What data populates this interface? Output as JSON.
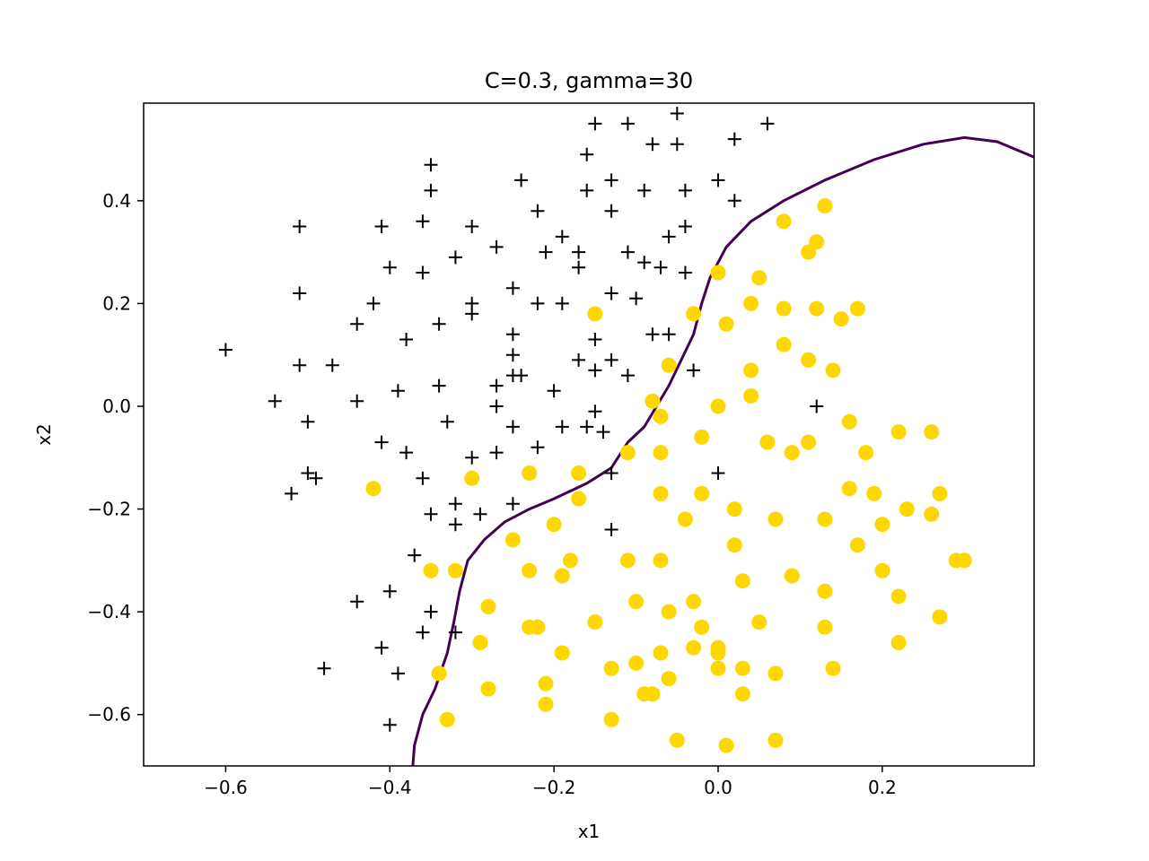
{
  "chart_data": {
    "type": "scatter",
    "title": "C=0.3, gamma=30",
    "xlabel": "x1",
    "ylabel": "x2",
    "xlim": [
      -0.7,
      0.385
    ],
    "ylim": [
      -0.7,
      0.59
    ],
    "x_ticks": [
      -0.6,
      -0.4,
      -0.2,
      0.0,
      0.2
    ],
    "x_tick_labels": [
      "−0.6",
      "−0.4",
      "−0.2",
      "0.0",
      "0.2"
    ],
    "y_ticks": [
      -0.6,
      -0.4,
      -0.2,
      0.0,
      0.2,
      0.4
    ],
    "y_tick_labels": [
      "−0.6",
      "−0.4",
      "−0.2",
      "0.0",
      "0.2",
      "0.4"
    ],
    "grid": false,
    "colors": {
      "positive": "#000000",
      "negative": "#FFD700",
      "boundary": "#440154"
    },
    "series": [
      {
        "marker": "plus",
        "color": "#000000",
        "points": [
          [
            -0.15,
            0.55
          ],
          [
            -0.11,
            0.55
          ],
          [
            -0.05,
            0.57
          ],
          [
            0.06,
            0.55
          ],
          [
            -0.08,
            0.51
          ],
          [
            -0.05,
            0.51
          ],
          [
            0.02,
            0.52
          ],
          [
            -0.35,
            0.47
          ],
          [
            -0.16,
            0.49
          ],
          [
            -0.35,
            0.42
          ],
          [
            -0.24,
            0.44
          ],
          [
            -0.16,
            0.42
          ],
          [
            -0.13,
            0.44
          ],
          [
            -0.09,
            0.42
          ],
          [
            -0.04,
            0.42
          ],
          [
            0.0,
            0.44
          ],
          [
            0.02,
            0.4
          ],
          [
            -0.51,
            0.35
          ],
          [
            -0.41,
            0.35
          ],
          [
            -0.36,
            0.36
          ],
          [
            -0.3,
            0.35
          ],
          [
            -0.22,
            0.38
          ],
          [
            -0.13,
            0.38
          ],
          [
            -0.04,
            0.35
          ],
          [
            -0.27,
            0.31
          ],
          [
            -0.19,
            0.33
          ],
          [
            -0.06,
            0.33
          ],
          [
            -0.4,
            0.27
          ],
          [
            -0.36,
            0.26
          ],
          [
            -0.32,
            0.29
          ],
          [
            -0.21,
            0.3
          ],
          [
            -0.17,
            0.3
          ],
          [
            -0.11,
            0.3
          ],
          [
            -0.17,
            0.27
          ],
          [
            -0.09,
            0.28
          ],
          [
            -0.07,
            0.27
          ],
          [
            -0.04,
            0.26
          ],
          [
            -0.51,
            0.22
          ],
          [
            -0.42,
            0.2
          ],
          [
            -0.3,
            0.2
          ],
          [
            -0.3,
            0.18
          ],
          [
            -0.25,
            0.23
          ],
          [
            -0.22,
            0.2
          ],
          [
            -0.19,
            0.2
          ],
          [
            -0.13,
            0.22
          ],
          [
            -0.1,
            0.21
          ],
          [
            -0.44,
            0.16
          ],
          [
            -0.34,
            0.16
          ],
          [
            -0.38,
            0.13
          ],
          [
            -0.25,
            0.14
          ],
          [
            -0.15,
            0.13
          ],
          [
            -0.08,
            0.14
          ],
          [
            -0.06,
            0.14
          ],
          [
            -0.6,
            0.11
          ],
          [
            -0.51,
            0.08
          ],
          [
            -0.47,
            0.08
          ],
          [
            -0.25,
            0.1
          ],
          [
            -0.17,
            0.09
          ],
          [
            -0.15,
            0.07
          ],
          [
            -0.13,
            0.09
          ],
          [
            -0.11,
            0.06
          ],
          [
            -0.27,
            0.04
          ],
          [
            -0.25,
            0.06
          ],
          [
            -0.24,
            0.06
          ],
          [
            -0.03,
            0.07
          ],
          [
            -0.54,
            0.01
          ],
          [
            -0.44,
            0.01
          ],
          [
            -0.39,
            0.03
          ],
          [
            -0.34,
            0.04
          ],
          [
            -0.27,
            0.0
          ],
          [
            -0.2,
            0.03
          ],
          [
            -0.5,
            -0.03
          ],
          [
            -0.33,
            -0.03
          ],
          [
            -0.25,
            -0.04
          ],
          [
            -0.19,
            -0.04
          ],
          [
            -0.16,
            -0.04
          ],
          [
            -0.15,
            -0.01
          ],
          [
            -0.14,
            -0.05
          ],
          [
            0.12,
            0.0
          ],
          [
            -0.41,
            -0.07
          ],
          [
            -0.38,
            -0.09
          ],
          [
            -0.3,
            -0.1
          ],
          [
            -0.27,
            -0.09
          ],
          [
            -0.22,
            -0.08
          ],
          [
            -0.5,
            -0.13
          ],
          [
            -0.49,
            -0.14
          ],
          [
            -0.52,
            -0.17
          ],
          [
            -0.36,
            -0.14
          ],
          [
            -0.32,
            -0.19
          ],
          [
            -0.25,
            -0.19
          ],
          [
            -0.13,
            -0.13
          ],
          [
            0.0,
            -0.13
          ],
          [
            -0.35,
            -0.21
          ],
          [
            -0.32,
            -0.23
          ],
          [
            -0.29,
            -0.21
          ],
          [
            -0.13,
            -0.24
          ],
          [
            -0.37,
            -0.29
          ],
          [
            -0.44,
            -0.38
          ],
          [
            -0.4,
            -0.36
          ],
          [
            -0.35,
            -0.4
          ],
          [
            -0.32,
            -0.44
          ],
          [
            -0.36,
            -0.44
          ],
          [
            -0.48,
            -0.51
          ],
          [
            -0.41,
            -0.47
          ],
          [
            -0.39,
            -0.52
          ],
          [
            -0.4,
            -0.62
          ]
        ]
      },
      {
        "marker": "circle",
        "color": "#FFD700",
        "points": [
          [
            0.08,
            0.36
          ],
          [
            0.13,
            0.39
          ],
          [
            0.12,
            0.32
          ],
          [
            0.11,
            0.3
          ],
          [
            0.0,
            0.26
          ],
          [
            0.05,
            0.25
          ],
          [
            -0.15,
            0.18
          ],
          [
            -0.03,
            0.18
          ],
          [
            0.01,
            0.16
          ],
          [
            0.04,
            0.2
          ],
          [
            0.08,
            0.19
          ],
          [
            0.12,
            0.19
          ],
          [
            0.15,
            0.17
          ],
          [
            0.17,
            0.19
          ],
          [
            0.08,
            0.12
          ],
          [
            -0.06,
            0.08
          ],
          [
            0.04,
            0.07
          ],
          [
            0.11,
            0.09
          ],
          [
            0.14,
            0.07
          ],
          [
            -0.08,
            0.01
          ],
          [
            0.0,
            0.0
          ],
          [
            0.04,
            0.02
          ],
          [
            -0.07,
            -0.02
          ],
          [
            0.16,
            -0.03
          ],
          [
            -0.02,
            -0.06
          ],
          [
            -0.11,
            -0.09
          ],
          [
            -0.07,
            -0.09
          ],
          [
            0.06,
            -0.07
          ],
          [
            0.09,
            -0.09
          ],
          [
            0.11,
            -0.07
          ],
          [
            0.18,
            -0.09
          ],
          [
            0.22,
            -0.05
          ],
          [
            0.26,
            -0.05
          ],
          [
            -0.3,
            -0.14
          ],
          [
            -0.23,
            -0.13
          ],
          [
            -0.17,
            -0.13
          ],
          [
            -0.42,
            -0.16
          ],
          [
            -0.17,
            -0.18
          ],
          [
            -0.07,
            -0.17
          ],
          [
            -0.02,
            -0.17
          ],
          [
            0.02,
            -0.2
          ],
          [
            0.16,
            -0.16
          ],
          [
            0.19,
            -0.17
          ],
          [
            0.27,
            -0.17
          ],
          [
            -0.04,
            -0.22
          ],
          [
            0.07,
            -0.22
          ],
          [
            0.13,
            -0.22
          ],
          [
            0.2,
            -0.23
          ],
          [
            0.23,
            -0.2
          ],
          [
            0.26,
            -0.21
          ],
          [
            -0.2,
            -0.23
          ],
          [
            -0.25,
            -0.26
          ],
          [
            0.02,
            -0.27
          ],
          [
            0.17,
            -0.27
          ],
          [
            -0.35,
            -0.32
          ],
          [
            -0.32,
            -0.32
          ],
          [
            -0.23,
            -0.32
          ],
          [
            -0.18,
            -0.3
          ],
          [
            -0.11,
            -0.3
          ],
          [
            -0.07,
            -0.3
          ],
          [
            -0.19,
            -0.33
          ],
          [
            0.03,
            -0.34
          ],
          [
            0.09,
            -0.33
          ],
          [
            0.2,
            -0.32
          ],
          [
            0.29,
            -0.3
          ],
          [
            0.3,
            -0.3
          ],
          [
            -0.28,
            -0.39
          ],
          [
            -0.1,
            -0.38
          ],
          [
            -0.06,
            -0.4
          ],
          [
            -0.03,
            -0.38
          ],
          [
            0.13,
            -0.36
          ],
          [
            0.22,
            -0.37
          ],
          [
            -0.23,
            -0.43
          ],
          [
            -0.22,
            -0.43
          ],
          [
            -0.15,
            -0.42
          ],
          [
            -0.02,
            -0.43
          ],
          [
            0.05,
            -0.42
          ],
          [
            0.13,
            -0.43
          ],
          [
            0.27,
            -0.41
          ],
          [
            -0.29,
            -0.46
          ],
          [
            -0.19,
            -0.48
          ],
          [
            -0.07,
            -0.48
          ],
          [
            -0.03,
            -0.47
          ],
          [
            0.0,
            -0.47
          ],
          [
            0.0,
            -0.48
          ],
          [
            0.22,
            -0.46
          ],
          [
            -0.34,
            -0.52
          ],
          [
            -0.28,
            -0.55
          ],
          [
            -0.21,
            -0.54
          ],
          [
            -0.13,
            -0.51
          ],
          [
            -0.1,
            -0.5
          ],
          [
            -0.09,
            -0.56
          ],
          [
            -0.08,
            -0.56
          ],
          [
            -0.06,
            -0.53
          ],
          [
            0.0,
            -0.51
          ],
          [
            0.03,
            -0.51
          ],
          [
            0.07,
            -0.52
          ],
          [
            0.14,
            -0.51
          ],
          [
            0.03,
            -0.56
          ],
          [
            -0.33,
            -0.61
          ],
          [
            -0.21,
            -0.58
          ],
          [
            -0.13,
            -0.61
          ],
          [
            -0.05,
            -0.65
          ],
          [
            0.01,
            -0.66
          ],
          [
            0.07,
            -0.65
          ]
        ]
      },
      {
        "marker": "line",
        "color": "#440154",
        "points": [
          [
            -0.372,
            -0.7
          ],
          [
            -0.37,
            -0.66
          ],
          [
            -0.36,
            -0.6
          ],
          [
            -0.345,
            -0.55
          ],
          [
            -0.33,
            -0.48
          ],
          [
            -0.322,
            -0.42
          ],
          [
            -0.315,
            -0.36
          ],
          [
            -0.305,
            -0.3
          ],
          [
            -0.285,
            -0.26
          ],
          [
            -0.26,
            -0.225
          ],
          [
            -0.23,
            -0.2
          ],
          [
            -0.2,
            -0.18
          ],
          [
            -0.16,
            -0.15
          ],
          [
            -0.13,
            -0.12
          ],
          [
            -0.11,
            -0.07
          ],
          [
            -0.09,
            -0.04
          ],
          [
            -0.075,
            0.0
          ],
          [
            -0.06,
            0.04
          ],
          [
            -0.045,
            0.09
          ],
          [
            -0.03,
            0.14
          ],
          [
            -0.02,
            0.2
          ],
          [
            -0.01,
            0.25
          ],
          [
            0.01,
            0.31
          ],
          [
            0.04,
            0.36
          ],
          [
            0.08,
            0.4
          ],
          [
            0.13,
            0.44
          ],
          [
            0.19,
            0.48
          ],
          [
            0.25,
            0.51
          ],
          [
            0.3,
            0.523
          ],
          [
            0.34,
            0.515
          ],
          [
            0.385,
            0.485
          ]
        ]
      }
    ]
  }
}
